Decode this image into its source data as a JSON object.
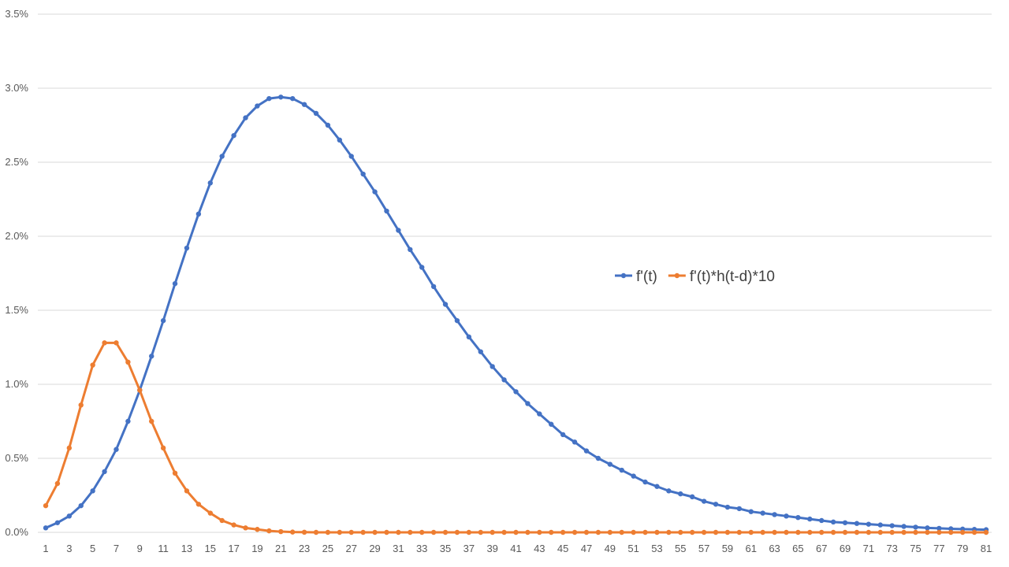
{
  "chart_data": {
    "type": "line",
    "title": "",
    "xlabel": "",
    "ylabel": "",
    "x": [
      1,
      2,
      3,
      4,
      5,
      6,
      7,
      8,
      9,
      10,
      11,
      12,
      13,
      14,
      15,
      16,
      17,
      18,
      19,
      20,
      21,
      22,
      23,
      24,
      25,
      26,
      27,
      28,
      29,
      30,
      31,
      32,
      33,
      34,
      35,
      36,
      37,
      38,
      39,
      40,
      41,
      42,
      43,
      44,
      45,
      46,
      47,
      48,
      49,
      50,
      51,
      52,
      53,
      54,
      55,
      56,
      57,
      58,
      59,
      60,
      61,
      62,
      63,
      64,
      65,
      66,
      67,
      68,
      69,
      70,
      71,
      72,
      73,
      74,
      75,
      76,
      77,
      78,
      79,
      80,
      81
    ],
    "x_tick_labels": [
      "1",
      "3",
      "5",
      "7",
      "9",
      "11",
      "13",
      "15",
      "17",
      "19",
      "21",
      "23",
      "25",
      "27",
      "29",
      "31",
      "33",
      "35",
      "37",
      "39",
      "41",
      "43",
      "45",
      "47",
      "49",
      "51",
      "53",
      "55",
      "57",
      "59",
      "61",
      "63",
      "65",
      "67",
      "69",
      "71",
      "73",
      "75",
      "77",
      "79",
      "81"
    ],
    "y_ticks": [
      0,
      0.005,
      0.01,
      0.015,
      0.02,
      0.025,
      0.03,
      0.035
    ],
    "y_tick_labels": [
      "0.0%",
      "0.5%",
      "1.0%",
      "1.5%",
      "2.0%",
      "2.5%",
      "3.0%",
      "3.5%"
    ],
    "ylim": [
      0,
      0.035
    ],
    "grid": "horizontal",
    "legend_position": "right",
    "series": [
      {
        "name": "f'(t)",
        "color": "#4472c4",
        "values": [
          0.0003,
          0.00065,
          0.0011,
          0.0018,
          0.0028,
          0.0041,
          0.0056,
          0.0075,
          0.0096,
          0.0119,
          0.0143,
          0.0168,
          0.0192,
          0.0215,
          0.0236,
          0.0254,
          0.0268,
          0.028,
          0.0288,
          0.0293,
          0.0294,
          0.0293,
          0.0289,
          0.0283,
          0.0275,
          0.0265,
          0.0254,
          0.0242,
          0.023,
          0.0217,
          0.0204,
          0.0191,
          0.0179,
          0.0166,
          0.0154,
          0.0143,
          0.0132,
          0.0122,
          0.0112,
          0.0103,
          0.0095,
          0.0087,
          0.008,
          0.0073,
          0.0066,
          0.0061,
          0.0055,
          0.005,
          0.0046,
          0.0042,
          0.0038,
          0.0034,
          0.0031,
          0.0028,
          0.0026,
          0.0024,
          0.0021,
          0.0019,
          0.0017,
          0.0016,
          0.0014,
          0.0013,
          0.0012,
          0.0011,
          0.001,
          0.0009,
          0.0008,
          0.0007,
          0.00065,
          0.0006,
          0.00055,
          0.0005,
          0.00045,
          0.0004,
          0.00035,
          0.0003,
          0.00027,
          0.00024,
          0.00022,
          0.0002,
          0.00018
        ]
      },
      {
        "name": "f'(t)*h(t-d)*10",
        "color": "#ed7d31",
        "values": [
          0.0018,
          0.0033,
          0.0057,
          0.0086,
          0.0113,
          0.0128,
          0.0128,
          0.0115,
          0.0096,
          0.0075,
          0.0057,
          0.004,
          0.0028,
          0.0019,
          0.0013,
          0.0008,
          0.0005,
          0.0003,
          0.0002,
          0.0001,
          5e-05,
          2e-05,
          1e-05,
          0,
          0,
          0,
          0,
          0,
          0,
          0,
          0,
          0,
          0,
          0,
          0,
          0,
          0,
          0,
          0,
          0,
          0,
          0,
          0,
          0,
          0,
          0,
          0,
          0,
          0,
          0,
          0,
          0,
          0,
          0,
          0,
          0,
          0,
          0,
          0,
          0,
          0,
          0,
          0,
          0,
          0,
          0,
          0,
          0,
          0,
          0,
          0,
          0,
          0,
          0,
          0,
          0,
          0,
          0,
          0,
          0,
          0
        ]
      }
    ]
  }
}
